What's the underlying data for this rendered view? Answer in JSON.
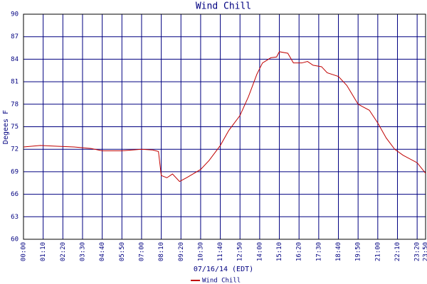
{
  "chart_data": {
    "type": "line",
    "title": "Wind Chill",
    "y_label": "Degees F",
    "x_label": "07/16/14 (EDT)",
    "x": [
      "00:00",
      "01:00",
      "02:00",
      "03:00",
      "04:00",
      "04:40",
      "05:50",
      "07:00",
      "07:40",
      "08:00",
      "08:10",
      "08:30",
      "08:50",
      "09:15",
      "09:40",
      "10:30",
      "11:00",
      "11:40",
      "12:10",
      "12:50",
      "13:20",
      "13:50",
      "14:10",
      "14:40",
      "15:00",
      "15:10",
      "15:40",
      "16:00",
      "16:30",
      "16:50",
      "17:10",
      "17:40",
      "18:00",
      "18:40",
      "19:10",
      "19:50",
      "20:30",
      "21:00",
      "21:30",
      "22:00",
      "22:30",
      "23:20",
      "23:50"
    ],
    "series": [
      {
        "name": "Wind Chill",
        "color": "#c00000",
        "values": [
          72.3,
          72.5,
          72.4,
          72.3,
          72.1,
          71.8,
          71.8,
          72.0,
          71.9,
          71.7,
          68.5,
          68.2,
          68.7,
          67.7,
          68.2,
          69.3,
          70.5,
          72.5,
          74.5,
          76.5,
          79.0,
          82.0,
          83.5,
          84.2,
          84.3,
          85.0,
          84.8,
          83.5,
          83.5,
          83.7,
          83.2,
          83.0,
          82.2,
          81.7,
          80.5,
          78.0,
          77.2,
          75.5,
          73.5,
          72.0,
          71.2,
          70.2,
          68.8
        ]
      }
    ],
    "xlim": [
      "00:00",
      "23:50"
    ],
    "xticks": [
      "00:00",
      "01:10",
      "02:20",
      "03:30",
      "04:40",
      "05:50",
      "07:00",
      "08:10",
      "09:20",
      "10:30",
      "11:40",
      "12:50",
      "14:00",
      "15:10",
      "16:20",
      "17:30",
      "18:40",
      "19:50",
      "21:00",
      "22:10",
      "23:20",
      "23:50"
    ],
    "ylim": [
      60,
      90
    ],
    "yticks": [
      60,
      63,
      66,
      69,
      72,
      75,
      78,
      81,
      84,
      87,
      90
    ],
    "grid": true
  }
}
